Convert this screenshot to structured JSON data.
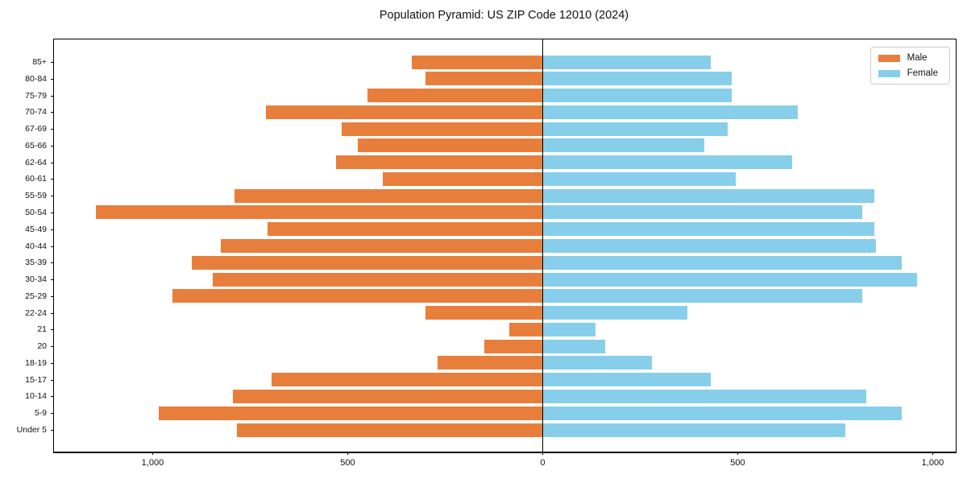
{
  "chart_data": {
    "type": "bar",
    "orientation": "horizontal-pyramid",
    "title": "Population Pyramid: US ZIP Code 12010 (2024)",
    "categories_top_to_bottom": [
      "85+",
      "80-84",
      "75-79",
      "70-74",
      "67-69",
      "65-66",
      "62-64",
      "60-61",
      "55-59",
      "50-54",
      "45-49",
      "40-44",
      "35-39",
      "30-34",
      "25-29",
      "22-24",
      "21",
      "20",
      "18-19",
      "15-17",
      "10-14",
      "5-9",
      "Under 5"
    ],
    "series": [
      {
        "name": "Male",
        "side": "left",
        "color": "#e87e3c",
        "values": [
          335,
          300,
          450,
          710,
          515,
          475,
          530,
          410,
          790,
          1145,
          705,
          825,
          900,
          845,
          950,
          300,
          85,
          150,
          270,
          695,
          795,
          985,
          785
        ]
      },
      {
        "name": "Female",
        "side": "right",
        "color": "#87ceeb",
        "values": [
          430,
          485,
          485,
          655,
          475,
          415,
          640,
          495,
          850,
          820,
          850,
          855,
          920,
          960,
          820,
          370,
          135,
          160,
          280,
          430,
          830,
          920,
          775
        ]
      }
    ],
    "x_ticks": [
      {
        "value": -1000,
        "label": "1,000"
      },
      {
        "value": -500,
        "label": "500"
      },
      {
        "value": 0,
        "label": "0"
      },
      {
        "value": 500,
        "label": "500"
      },
      {
        "value": 1000,
        "label": "1,000"
      }
    ],
    "xlim": [
      -1253,
      1059
    ],
    "zero_line": true,
    "grid": false,
    "legend_position": "upper right"
  },
  "colors": {
    "male": "#e87e3c",
    "female": "#87ceeb",
    "axis": "#000000",
    "background": "#ffffff",
    "legend_border": "#cccccc"
  }
}
